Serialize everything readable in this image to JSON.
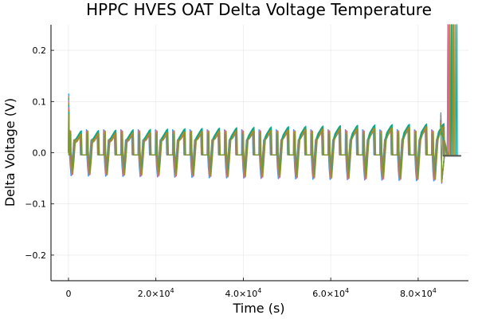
{
  "chart_data": {
    "type": "line",
    "title": "HPPC HVES OAT Delta Voltage Temperature",
    "xlabel": "Time (s)",
    "ylabel": "Delta Voltage (V)",
    "xlim": [
      -4000,
      91500
    ],
    "ylim": [
      -0.25,
      0.25
    ],
    "grid": true,
    "legend": "none",
    "x_ticks": [
      {
        "value": 0,
        "label": "0",
        "mantissa": "",
        "exp": ""
      },
      {
        "value": 20000,
        "label": "",
        "mantissa": "2.0×10",
        "exp": "4"
      },
      {
        "value": 40000,
        "label": "",
        "mantissa": "4.0×10",
        "exp": "4"
      },
      {
        "value": 60000,
        "label": "",
        "mantissa": "6.0×10",
        "exp": "4"
      },
      {
        "value": 80000,
        "label": "",
        "mantissa": "8.0×10",
        "exp": "4"
      }
    ],
    "y_ticks": [
      {
        "value": -0.2,
        "label": "−0.2"
      },
      {
        "value": -0.1,
        "label": "−0.1"
      },
      {
        "value": 0.0,
        "label": "0.0"
      },
      {
        "value": 0.1,
        "label": "0.1"
      },
      {
        "value": 0.2,
        "label": "0.2"
      }
    ],
    "pulse_period_s": 3950,
    "pulse_count": 22,
    "pulse_plateau_v": [
      0.038,
      0.052
    ],
    "pulse_negative_spike_v": [
      -0.045,
      -0.062
    ],
    "pulse_positive_spike_v": 0.045,
    "initial_spike_v": 0.115,
    "test_end_s": 86000,
    "rest_value_v": -0.006,
    "vertical_excursion_x_s": [
      86800,
      87200,
      87600,
      88000,
      88400,
      88800
    ],
    "series_colors": [
      "#009AFA",
      "#E36F47",
      "#3EA44E",
      "#C371D2",
      "#AC8D18",
      "#00A9AD",
      "#ED5E93",
      "#C68225",
      "#00A98D",
      "#8E971E"
    ]
  }
}
